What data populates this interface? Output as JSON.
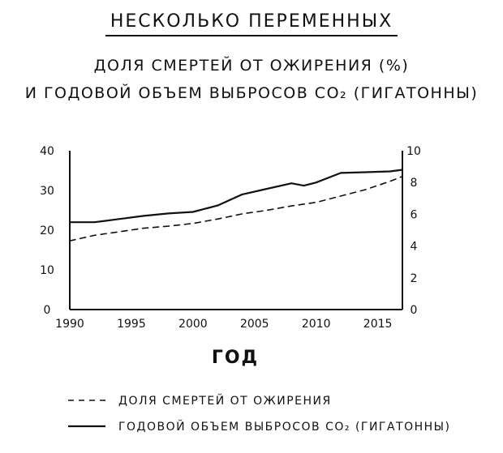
{
  "header": {
    "title": "НЕСКОЛЬКО ПЕРЕМЕННЫХ"
  },
  "chart_data": {
    "type": "line",
    "title_line1": "ДОЛЯ СМЕРТЕЙ ОТ ОЖИРЕНИЯ (%)",
    "title_line2": "И ГОДОВОЙ ОБЪЕМ ВЫБРОСОВ CO₂ (ГИГАТОННЫ)",
    "xlabel": "ГОД",
    "xlim": [
      1990,
      2017
    ],
    "xticks": [
      1990,
      1995,
      2000,
      2005,
      2010,
      2015
    ],
    "ylim_left": [
      0,
      40
    ],
    "yticks_left": [
      0,
      10,
      20,
      30,
      40
    ],
    "ylim_right": [
      0,
      10
    ],
    "yticks_right": [
      0,
      2,
      4,
      6,
      8,
      10
    ],
    "grid": false,
    "legend_position": "bottom",
    "series": [
      {
        "name": "ДОЛЯ СМЕРТЕЙ ОТ ОЖИРЕНИЯ",
        "axis": "left",
        "style": "dashed",
        "x": [
          1990,
          1992,
          1994,
          1996,
          1998,
          2000,
          2002,
          2004,
          2006,
          2008,
          2010,
          2012,
          2014,
          2016,
          2017
        ],
        "y": [
          17.3,
          18.7,
          19.6,
          20.5,
          21.0,
          21.7,
          22.8,
          24.1,
          25.0,
          26.1,
          27.0,
          28.6,
          30.2,
          32.3,
          33.5
        ]
      },
      {
        "name": "ГОДОВОЙ ОБЪЕМ ВЫБРОСОВ CO₂ (ГИГАТОННЫ)",
        "axis": "right",
        "style": "solid",
        "x": [
          1990,
          1992,
          1994,
          1996,
          1998,
          2000,
          2002,
          2004,
          2006,
          2008,
          2009,
          2010,
          2012,
          2014,
          2016,
          2017
        ],
        "y": [
          5.5,
          5.5,
          5.7,
          5.9,
          6.05,
          6.15,
          6.55,
          7.25,
          7.6,
          7.95,
          7.8,
          8.0,
          8.6,
          8.65,
          8.7,
          8.8
        ]
      }
    ]
  }
}
